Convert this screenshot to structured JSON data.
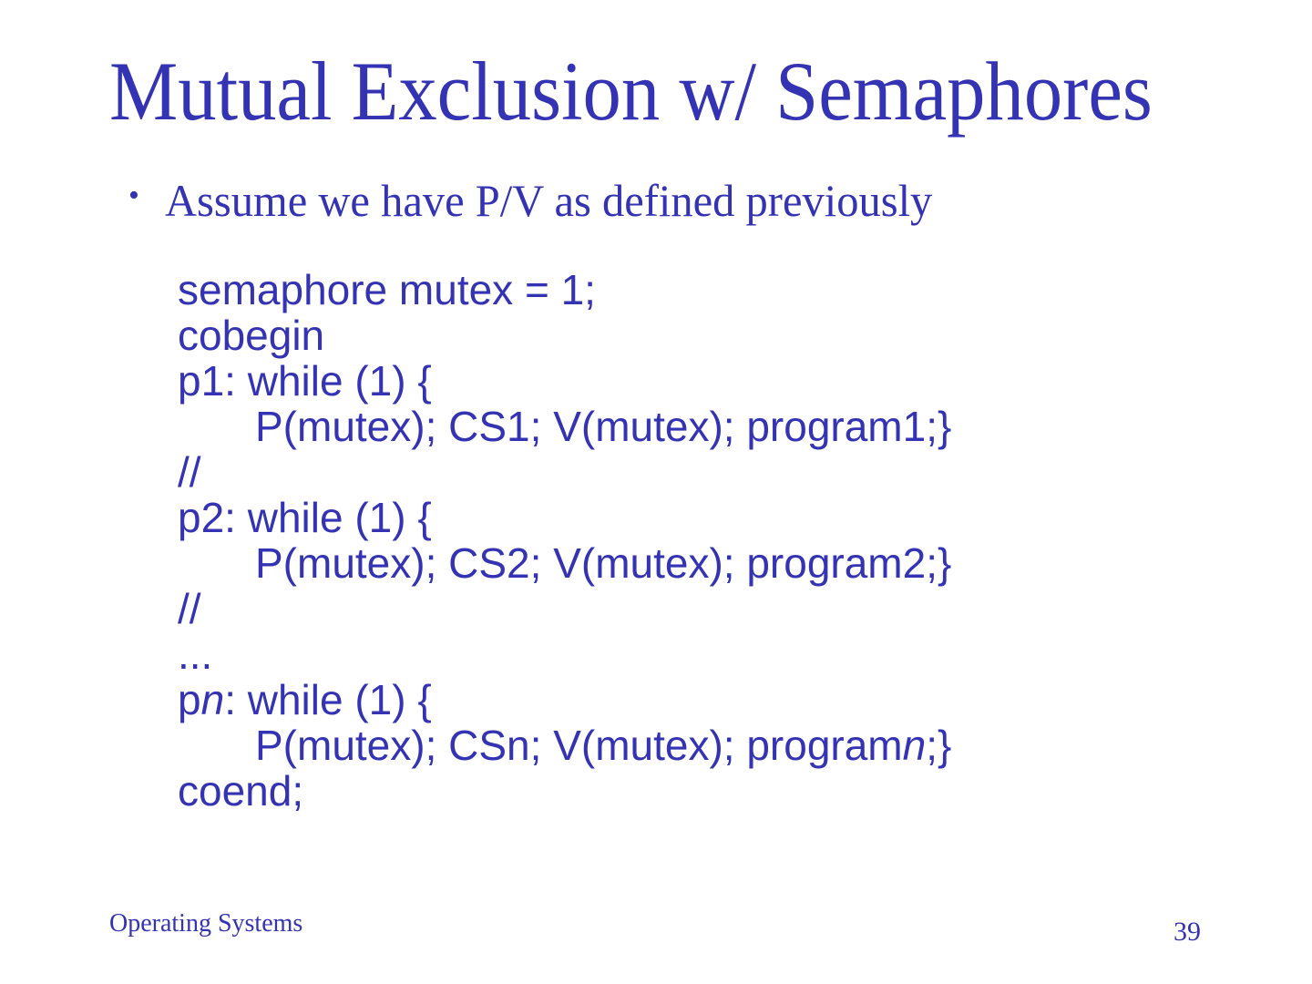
{
  "slide": {
    "title": "Mutual Exclusion w/ Semaphores",
    "bullet": {
      "marker": "•",
      "text": "Assume we have P/V as defined previously"
    },
    "code": {
      "lines": [
        {
          "indent": 0,
          "segments": [
            {
              "text": "semaphore mutex = 1;",
              "italic": false
            }
          ]
        },
        {
          "indent": 0,
          "segments": [
            {
              "text": "cobegin",
              "italic": false
            }
          ]
        },
        {
          "indent": 0,
          "segments": [
            {
              "text": "p1: while (1) {",
              "italic": false
            }
          ]
        },
        {
          "indent": 1,
          "segments": [
            {
              "text": "P(mutex); CS1; V(mutex); program1;}",
              "italic": false
            }
          ]
        },
        {
          "indent": 0,
          "segments": [
            {
              "text": "//",
              "italic": false
            }
          ]
        },
        {
          "indent": 0,
          "segments": [
            {
              "text": "p2: while (1) {",
              "italic": false
            }
          ]
        },
        {
          "indent": 1,
          "segments": [
            {
              "text": "P(mutex); CS2; V(mutex); program2;}",
              "italic": false
            }
          ]
        },
        {
          "indent": 0,
          "segments": [
            {
              "text": "//",
              "italic": false
            }
          ]
        },
        {
          "indent": 0,
          "segments": [
            {
              "text": "...",
              "italic": false
            }
          ]
        },
        {
          "indent": 0,
          "segments": [
            {
              "text": "p",
              "italic": false
            },
            {
              "text": "n",
              "italic": true
            },
            {
              "text": ": while (1) {",
              "italic": false
            }
          ]
        },
        {
          "indent": 1,
          "segments": [
            {
              "text": "P(mutex); CSn; V(mutex); program",
              "italic": false
            },
            {
              "text": "n",
              "italic": true
            },
            {
              "text": ";}",
              "italic": false
            }
          ]
        },
        {
          "indent": 0,
          "segments": [
            {
              "text": "coend;",
              "italic": false
            }
          ]
        }
      ]
    },
    "footer": {
      "left_label": "Operating Systems",
      "page_number": "39"
    },
    "colors": {
      "ink": "#3333b3",
      "background": "#ffffff"
    }
  }
}
